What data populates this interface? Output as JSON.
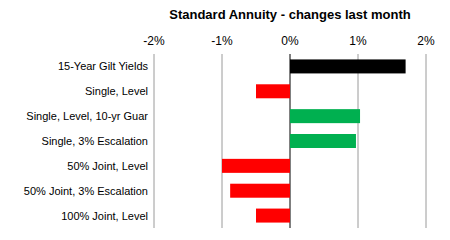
{
  "chart_data": {
    "type": "bar",
    "orientation": "horizontal",
    "title": "Standard Annuity - changes last month",
    "categories": [
      "15-Year Gilt Yields",
      "Single, Level",
      "Single, Level, 10-yr Guar",
      "Single, 3% Escalation",
      "50% Joint, Level",
      "50% Joint, 3% Escalation",
      "100% Joint, Level"
    ],
    "values": [
      1.7,
      -0.5,
      1.03,
      0.97,
      -1.0,
      -0.88,
      -0.5
    ],
    "colors": [
      "#000000",
      "#ff0000",
      "#00b050",
      "#00b050",
      "#ff0000",
      "#ff0000",
      "#ff0000"
    ],
    "xlim": [
      -2,
      2
    ],
    "xticks": [
      {
        "value": -2,
        "label": "-2%"
      },
      {
        "value": -1,
        "label": "-1%"
      },
      {
        "value": 0,
        "label": "0%"
      },
      {
        "value": 1,
        "label": "1%"
      },
      {
        "value": 2,
        "label": "2%"
      }
    ],
    "grid": true
  }
}
